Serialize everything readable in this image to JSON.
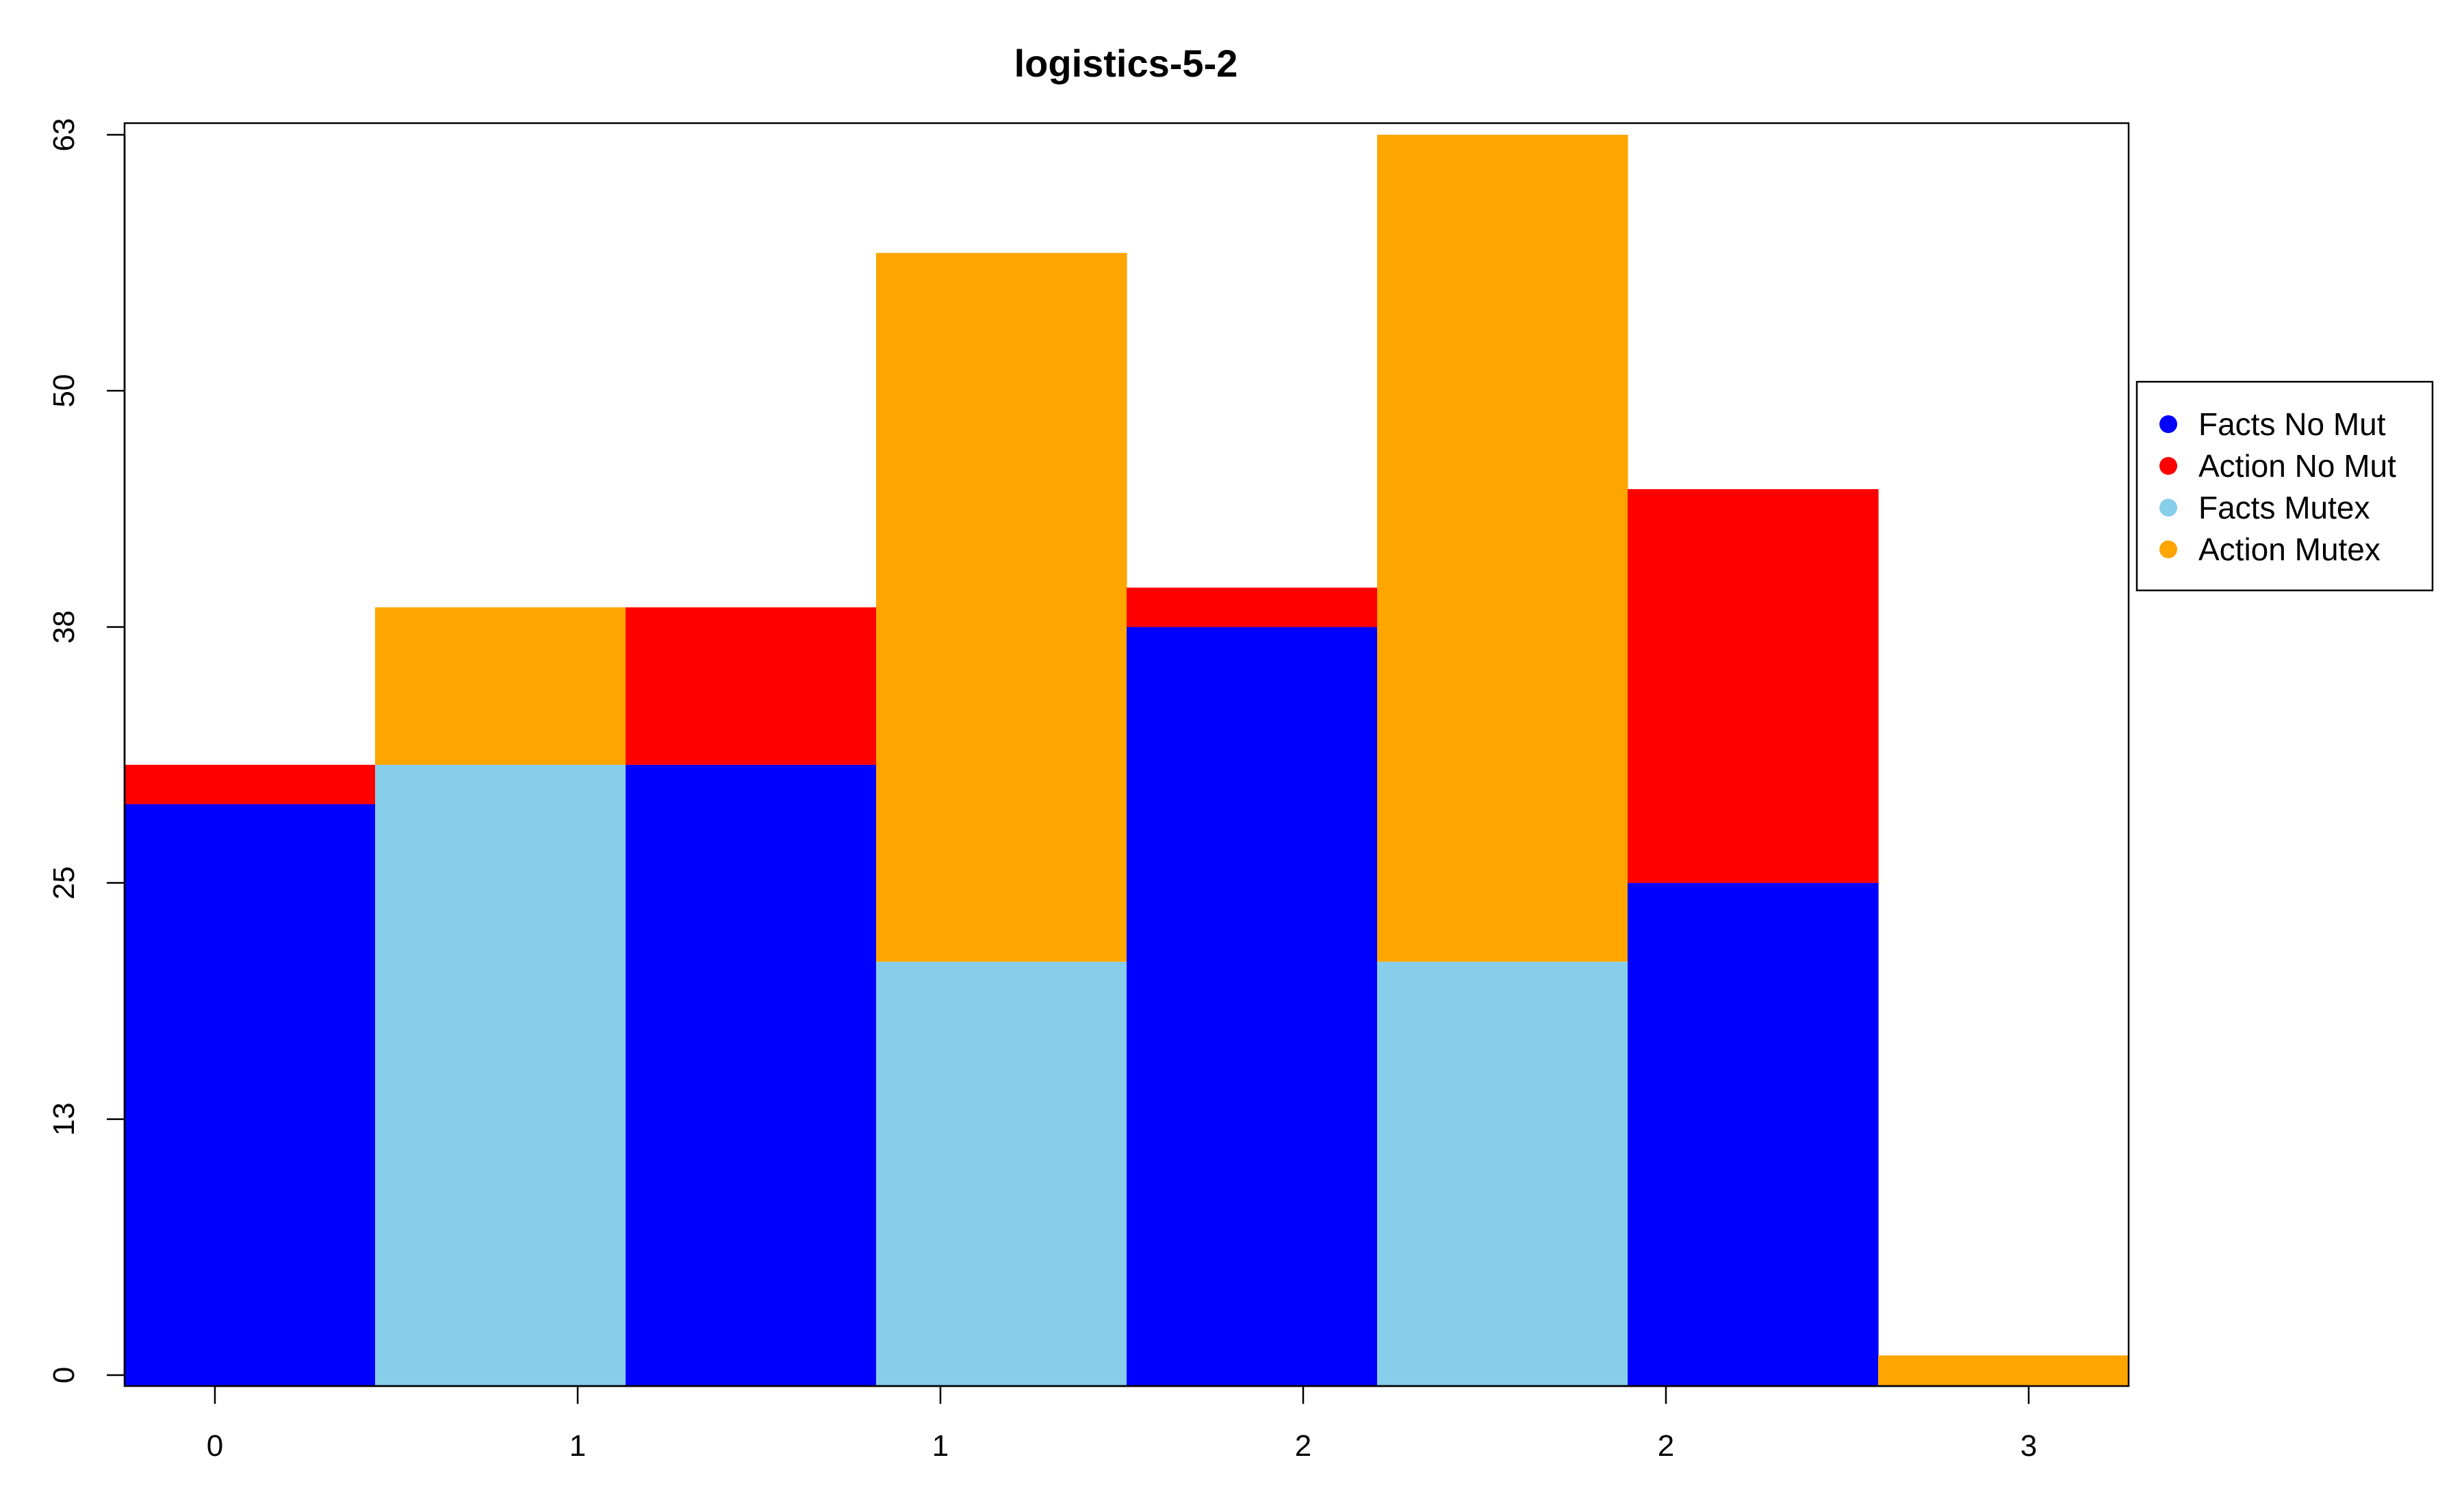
{
  "chart_data": {
    "type": "bar",
    "title": "logistics-5-2",
    "xlabel": "",
    "ylabel": "",
    "ylim": [
      0,
      63
    ],
    "y_ticks": [
      0,
      13,
      25,
      38,
      50,
      63
    ],
    "x_tick_labels": [
      "0",
      "1",
      "1",
      "2",
      "2",
      "3"
    ],
    "grid": false,
    "legend_position": "right",
    "series": [
      {
        "name": "Facts No Mut",
        "color": "#0000FF"
      },
      {
        "name": "Action No Mut",
        "color": "#FF0000"
      },
      {
        "name": "Facts Mutex",
        "color": "#87CEEB"
      },
      {
        "name": "Action Mutex",
        "color": "#FFA500"
      }
    ],
    "bars": [
      {
        "segments": [
          {
            "series": "Facts No Mut",
            "value": 29
          },
          {
            "series": "Action No Mut",
            "value": 2
          }
        ]
      },
      {
        "segments": [
          {
            "series": "Facts Mutex",
            "value": 31
          },
          {
            "series": "Action Mutex",
            "value": 8
          }
        ]
      },
      {
        "segments": [
          {
            "series": "Facts No Mut",
            "value": 31
          },
          {
            "series": "Action No Mut",
            "value": 8
          }
        ]
      },
      {
        "segments": [
          {
            "series": "Facts Mutex",
            "value": 21
          },
          {
            "series": "Action Mutex",
            "value": 36
          }
        ]
      },
      {
        "segments": [
          {
            "series": "Facts No Mut",
            "value": 38
          },
          {
            "series": "Action No Mut",
            "value": 2
          }
        ]
      },
      {
        "segments": [
          {
            "series": "Facts Mutex",
            "value": 21
          },
          {
            "series": "Action Mutex",
            "value": 42
          }
        ]
      },
      {
        "segments": [
          {
            "series": "Facts No Mut",
            "value": 25
          },
          {
            "series": "Action No Mut",
            "value": 20
          }
        ]
      },
      {
        "segments": [
          {
            "series": "Action Mutex",
            "value": 1
          }
        ]
      }
    ]
  }
}
